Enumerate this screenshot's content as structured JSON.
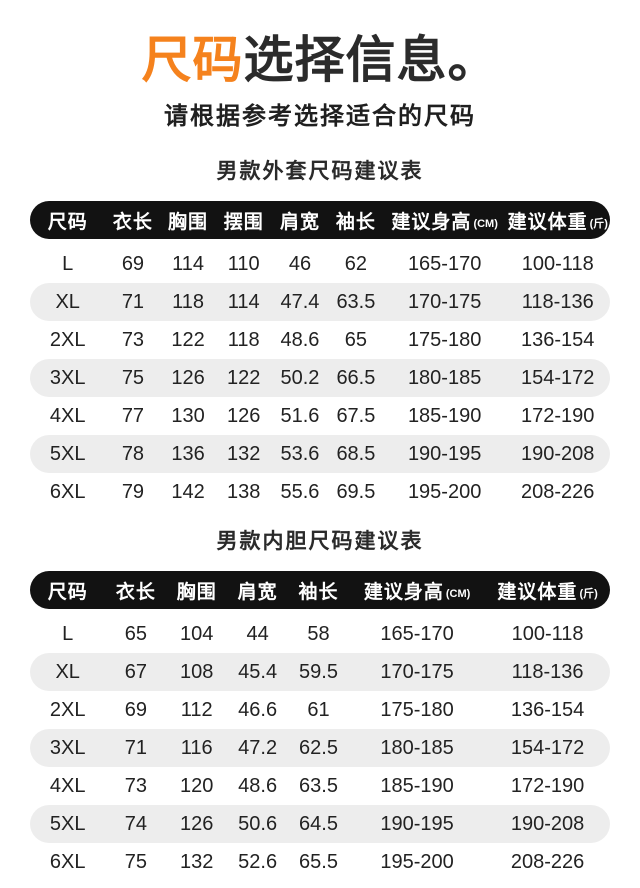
{
  "page": {
    "title_accent": "尺码",
    "title_rest": "选择信息。",
    "subtitle": "请根据参考选择适合的尺码"
  },
  "colors": {
    "accent_orange": "#f5821d",
    "header_pill_bg": "#121212",
    "alt_row_bg": "#ededed",
    "text_dark": "#222222"
  },
  "tables": [
    {
      "title": "男款外套尺码建议表",
      "columns": [
        "尺码",
        "衣长",
        "胸围",
        "摆围",
        "肩宽",
        "袖长",
        "建议身高",
        "建议体重"
      ],
      "column_units": [
        "",
        "",
        "",
        "",
        "",
        "",
        "(CM)",
        "(斤)"
      ],
      "rows": [
        [
          "L",
          "69",
          "114",
          "110",
          "46",
          "62",
          "165-170",
          "100-118"
        ],
        [
          "XL",
          "71",
          "118",
          "114",
          "47.4",
          "63.5",
          "170-175",
          "118-136"
        ],
        [
          "2XL",
          "73",
          "122",
          "118",
          "48.6",
          "65",
          "175-180",
          "136-154"
        ],
        [
          "3XL",
          "75",
          "126",
          "122",
          "50.2",
          "66.5",
          "180-185",
          "154-172"
        ],
        [
          "4XL",
          "77",
          "130",
          "126",
          "51.6",
          "67.5",
          "185-190",
          "172-190"
        ],
        [
          "5XL",
          "78",
          "136",
          "132",
          "53.6",
          "68.5",
          "190-195",
          "190-208"
        ],
        [
          "6XL",
          "79",
          "142",
          "138",
          "55.6",
          "69.5",
          "195-200",
          "208-226"
        ]
      ]
    },
    {
      "title": "男款内胆尺码建议表",
      "columns": [
        "尺码",
        "衣长",
        "胸围",
        "肩宽",
        "袖长",
        "建议身高",
        "建议体重"
      ],
      "column_units": [
        "",
        "",
        "",
        "",
        "",
        "(CM)",
        "(斤)"
      ],
      "rows": [
        [
          "L",
          "65",
          "104",
          "44",
          "58",
          "165-170",
          "100-118"
        ],
        [
          "XL",
          "67",
          "108",
          "45.4",
          "59.5",
          "170-175",
          "118-136"
        ],
        [
          "2XL",
          "69",
          "112",
          "46.6",
          "61",
          "175-180",
          "136-154"
        ],
        [
          "3XL",
          "71",
          "116",
          "47.2",
          "62.5",
          "180-185",
          "154-172"
        ],
        [
          "4XL",
          "73",
          "120",
          "48.6",
          "63.5",
          "185-190",
          "172-190"
        ],
        [
          "5XL",
          "74",
          "126",
          "50.6",
          "64.5",
          "190-195",
          "190-208"
        ],
        [
          "6XL",
          "75",
          "132",
          "52.6",
          "65.5",
          "195-200",
          "208-226"
        ]
      ]
    }
  ]
}
